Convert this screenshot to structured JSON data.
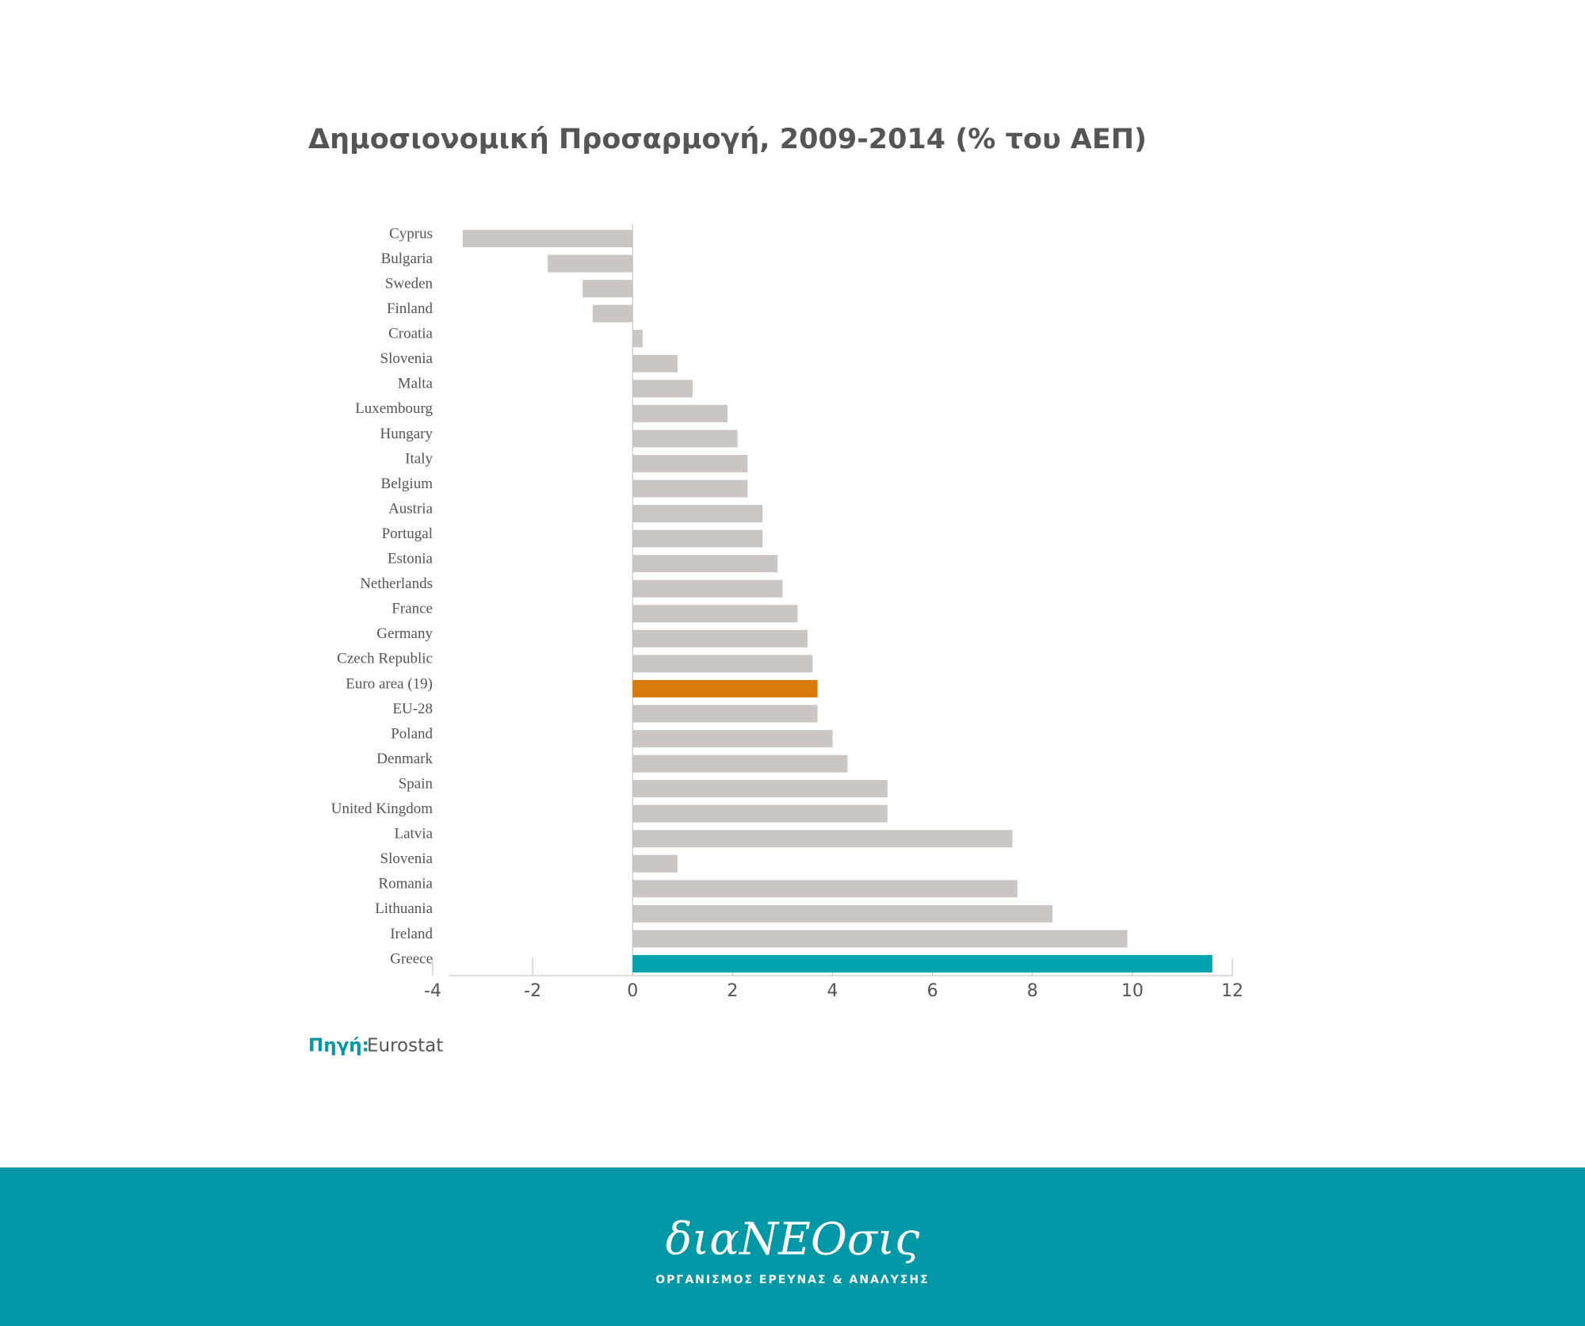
{
  "chart_data": {
    "type": "barh",
    "title": "Δημοσιονομική Προσαρμογή, 2009-2014 (% του ΑΕΠ)",
    "categories": [
      "Cyprus",
      "Bulgaria",
      "Sweden",
      "Finland",
      "Croatia",
      "Slovenia",
      "Malta",
      "Luxembourg",
      "Hungary",
      "Italy",
      "Belgium",
      "Austria",
      "Portugal",
      "Estonia",
      "Netherlands",
      "France",
      "Germany",
      "Czech Republic",
      "Euro area (19)",
      "EU-28",
      "Poland",
      "Denmark",
      "Spain",
      "United Kingdom",
      "Latvia",
      "Slovenia",
      "Romania",
      "Lithuania",
      "Ireland",
      "Greece"
    ],
    "values": [
      -3.4,
      -1.7,
      -1.0,
      -0.8,
      0.2,
      0.9,
      1.2,
      1.9,
      2.1,
      2.3,
      2.3,
      2.6,
      2.6,
      2.9,
      3.0,
      3.3,
      3.5,
      3.6,
      3.7,
      3.7,
      4.0,
      4.3,
      5.1,
      5.1,
      7.6,
      0.9,
      7.7,
      8.4,
      9.9,
      11.6
    ],
    "color": "#ccc6c3",
    "highlight_colors": {
      "Euro area (19)": "#d97a0a",
      "Greece": "#00a3b0"
    },
    "xlim": [
      -4,
      12
    ],
    "xticks": [
      -4,
      -2,
      0,
      2,
      4,
      6,
      8,
      10,
      12
    ],
    "source_label": "Πηγή:",
    "source": "Eurostat"
  },
  "footer": {
    "logo": "διαΝΕΟσις",
    "tagline": "ΟΡΓΑΝΙΣΜΟΣ ΕΡΕΥΝΑΣ & ΑΝΑΛΥΣΗΣ"
  }
}
